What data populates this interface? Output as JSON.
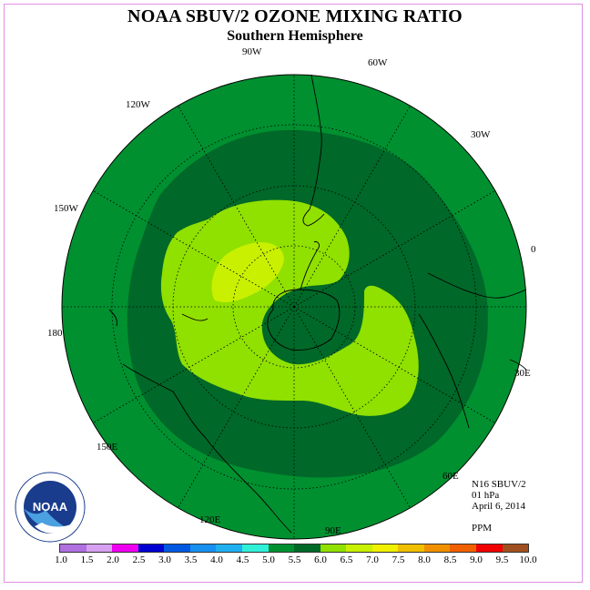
{
  "title": "NOAA SBUV/2 OZONE MIXING RATIO",
  "subtitle": "Southern Hemisphere",
  "longitude_labels": {
    "lon_90w": "90W",
    "lon_60w": "60W",
    "lon_120w": "120W",
    "lon_30w": "30W",
    "lon_150w": "150W",
    "lon_0": "0",
    "lon_180": "180",
    "lon_30e": "30E",
    "lon_150e": "150E",
    "lon_60e": "60E",
    "lon_120e": "120E",
    "lon_90e": "90E"
  },
  "info": {
    "satellite": "N16 SBUV/2",
    "pressure": "01 hPa",
    "date": "April 6, 2014",
    "units": "PPM"
  },
  "logo": {
    "text": "NOAA",
    "ring_text": "NATIONAL OCEANIC AND ATMOSPHERIC ADMINISTRATION · U.S. DEPARTMENT OF COMMERCE"
  },
  "colorbar": {
    "ticks": [
      "1.0",
      "1.5",
      "2.0",
      "2.5",
      "3.0",
      "3.5",
      "4.0",
      "4.5",
      "5.0",
      "5.5",
      "6.0",
      "6.5",
      "7.0",
      "7.5",
      "8.0",
      "8.5",
      "9.0",
      "9.5",
      "10.0"
    ],
    "colors": [
      "#b070e0",
      "#d8a0f0",
      "#f000f0",
      "#0000d0",
      "#0058e0",
      "#1890f0",
      "#20b0f0",
      "#30f0d8",
      "#009030",
      "#006828",
      "#90e000",
      "#c8f000",
      "#f0f000",
      "#f0c000",
      "#f09000",
      "#f06000",
      "#f00000",
      "#a05020"
    ]
  },
  "chart_data": {
    "type": "heatmap",
    "projection": "south polar stereographic",
    "field": "ozone mixing ratio",
    "units": "PPM",
    "level": "01 hPa",
    "date": "April 6, 2014",
    "regions": [
      {
        "band": "5.0-5.5",
        "color": "#009030",
        "location": "outer mid/low latitudes"
      },
      {
        "band": "5.5-6.0",
        "color": "#006828",
        "location": "ring around pole and central polar cap"
      },
      {
        "band": "6.0-6.5",
        "color": "#90e000",
        "location": "horseshoe around pole from Pacific sector to Indian Ocean sector"
      },
      {
        "band": "6.5-7.0",
        "color": "#c8f000",
        "location": "small patch near 150W-120W sector"
      }
    ]
  }
}
